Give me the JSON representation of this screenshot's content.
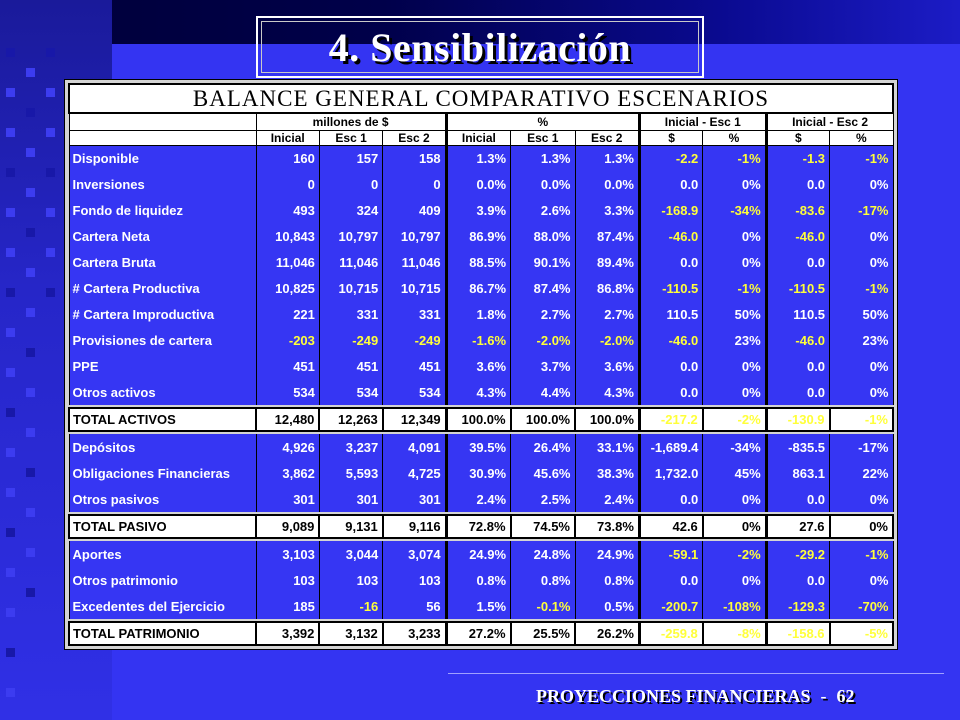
{
  "slide": {
    "title": "4. Sensibilización",
    "footer_text": "PROYECCIONES FINANCIERAS",
    "footer_separator": "-",
    "page_number": "62"
  },
  "table": {
    "banner": "BALANCE GENERAL COMPARATIVO ESCENARIOS",
    "groups": [
      "millones de $",
      "%",
      "Inicial - Esc 1",
      "Inicial - Esc 2"
    ],
    "subheaders": [
      "Inicial",
      "Esc 1",
      "Esc 2",
      "Inicial",
      "Esc 1",
      "Esc 2",
      "$",
      "%",
      "$",
      "%"
    ],
    "rows": [
      {
        "label": "Disponible",
        "cells": [
          "160",
          "157",
          "158",
          "1.3%",
          "1.3%",
          "1.3%",
          "-2.2",
          "-1%",
          "-1.3",
          "-1%"
        ],
        "highlight": [
          6,
          7,
          8,
          9
        ]
      },
      {
        "label": "Inversiones",
        "cells": [
          "0",
          "0",
          "0",
          "0.0%",
          "0.0%",
          "0.0%",
          "0.0",
          "0%",
          "0.0",
          "0%"
        ],
        "highlight": []
      },
      {
        "label": "Fondo de liquidez",
        "cells": [
          "493",
          "324",
          "409",
          "3.9%",
          "2.6%",
          "3.3%",
          "-168.9",
          "-34%",
          "-83.6",
          "-17%"
        ],
        "highlight": [
          6,
          7,
          8,
          9
        ]
      },
      {
        "label": "Cartera Neta",
        "cells": [
          "10,843",
          "10,797",
          "10,797",
          "86.9%",
          "88.0%",
          "87.4%",
          "-46.0",
          "0%",
          "-46.0",
          "0%"
        ],
        "highlight": [
          6,
          8
        ]
      },
      {
        "label": "Cartera Bruta",
        "cells": [
          "11,046",
          "11,046",
          "11,046",
          "88.5%",
          "90.1%",
          "89.4%",
          "0.0",
          "0%",
          "0.0",
          "0%"
        ],
        "highlight": []
      },
      {
        "label": "# Cartera Productiva",
        "cells": [
          "10,825",
          "10,715",
          "10,715",
          "86.7%",
          "87.4%",
          "86.8%",
          "-110.5",
          "-1%",
          "-110.5",
          "-1%"
        ],
        "highlight": [
          6,
          7,
          8,
          9
        ]
      },
      {
        "label": "# Cartera Improductiva",
        "cells": [
          "221",
          "331",
          "331",
          "1.8%",
          "2.7%",
          "2.7%",
          "110.5",
          "50%",
          "110.5",
          "50%"
        ],
        "highlight": []
      },
      {
        "label": "Provisiones de cartera",
        "cells": [
          "-203",
          "-249",
          "-249",
          "-1.6%",
          "-2.0%",
          "-2.0%",
          "-46.0",
          "23%",
          "-46.0",
          "23%"
        ],
        "highlight": [
          0,
          1,
          2,
          3,
          4,
          5,
          6,
          8
        ]
      },
      {
        "label": "PPE",
        "cells": [
          "451",
          "451",
          "451",
          "3.6%",
          "3.7%",
          "3.6%",
          "0.0",
          "0%",
          "0.0",
          "0%"
        ],
        "highlight": []
      },
      {
        "label": "Otros activos",
        "cells": [
          "534",
          "534",
          "534",
          "4.3%",
          "4.4%",
          "4.3%",
          "0.0",
          "0%",
          "0.0",
          "0%"
        ],
        "highlight": []
      }
    ],
    "total_activos": {
      "label": "TOTAL ACTIVOS",
      "cells": [
        "12,480",
        "12,263",
        "12,349",
        "100.0%",
        "100.0%",
        "100.0%",
        "-217.2",
        "-2%",
        "-130.9",
        "-1%"
      ],
      "highlight": [
        6,
        7,
        8,
        9
      ]
    },
    "pasivo_rows": [
      {
        "label": "Depósitos",
        "cells": [
          "4,926",
          "3,237",
          "4,091",
          "39.5%",
          "26.4%",
          "33.1%",
          "-1,689.4",
          "-34%",
          "-835.5",
          "-17%"
        ],
        "highlight": []
      },
      {
        "label": "Obligaciones Financieras",
        "cells": [
          "3,862",
          "5,593",
          "4,725",
          "30.9%",
          "45.6%",
          "38.3%",
          "1,732.0",
          "45%",
          "863.1",
          "22%"
        ],
        "highlight": []
      },
      {
        "label": "Otros pasivos",
        "cells": [
          "301",
          "301",
          "301",
          "2.4%",
          "2.5%",
          "2.4%",
          "0.0",
          "0%",
          "0.0",
          "0%"
        ],
        "highlight": []
      }
    ],
    "total_pasivo": {
      "label": "TOTAL PASIVO",
      "cells": [
        "9,089",
        "9,131",
        "9,116",
        "72.8%",
        "74.5%",
        "73.8%",
        "42.6",
        "0%",
        "27.6",
        "0%"
      ],
      "highlight": []
    },
    "patrimonio_rows": [
      {
        "label": "Aportes",
        "cells": [
          "3,103",
          "3,044",
          "3,074",
          "24.9%",
          "24.8%",
          "24.9%",
          "-59.1",
          "-2%",
          "-29.2",
          "-1%"
        ],
        "highlight": [
          6,
          7,
          8,
          9
        ]
      },
      {
        "label": "Otros patrimonio",
        "cells": [
          "103",
          "103",
          "103",
          "0.8%",
          "0.8%",
          "0.8%",
          "0.0",
          "0%",
          "0.0",
          "0%"
        ],
        "highlight": []
      },
      {
        "label": "Excedentes del Ejercicio",
        "cells": [
          "185",
          "-16",
          "56",
          "1.5%",
          "-0.1%",
          "0.5%",
          "-200.7",
          "-108%",
          "-129.3",
          "-70%"
        ],
        "highlight": [
          1,
          4,
          6,
          7,
          8,
          9
        ]
      }
    ],
    "total_patrimonio": {
      "label": "TOTAL PATRIMONIO",
      "cells": [
        "3,392",
        "3,132",
        "3,233",
        "27.2%",
        "25.5%",
        "26.2%",
        "-259.8",
        "-8%",
        "-158.6",
        "-5%"
      ],
      "highlight": [
        6,
        7,
        8,
        9
      ]
    },
    "colors": {
      "background": "#3434f2",
      "highlight": "#ffff3a",
      "text": "#ffffff"
    }
  }
}
